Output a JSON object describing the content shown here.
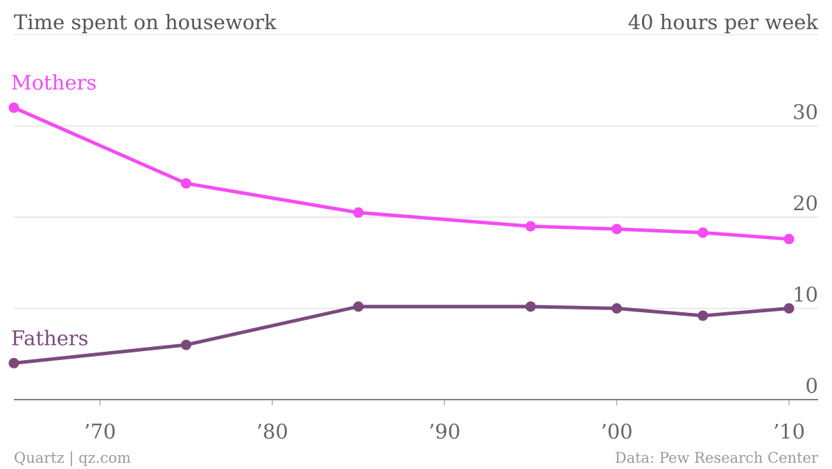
{
  "header": {
    "title": "Time spent on housework",
    "unit_label": "40 hours per week"
  },
  "footer": {
    "credit": "Quartz | qz.com",
    "source": "Data: Pew Research Center"
  },
  "chart_data": {
    "type": "line",
    "title": "Time spent on housework",
    "ylabel": "40 hours per week",
    "xlim": [
      1965,
      2011
    ],
    "ylim": [
      0,
      40
    ],
    "x_ticks": [
      {
        "value": 1970,
        "label": "’70"
      },
      {
        "value": 1980,
        "label": "’80"
      },
      {
        "value": 1990,
        "label": "’90"
      },
      {
        "value": 2000,
        "label": "’00"
      },
      {
        "value": 2010,
        "label": "’10"
      }
    ],
    "y_ticks": [
      {
        "value": 0,
        "label": "0"
      },
      {
        "value": 10,
        "label": "10"
      },
      {
        "value": 20,
        "label": "20"
      },
      {
        "value": 30,
        "label": "30"
      }
    ],
    "grid": true,
    "series": [
      {
        "name": "Mothers",
        "color": "#f34cf3",
        "x": [
          1965,
          1975,
          1985,
          1995,
          2000,
          2005,
          2010
        ],
        "values": [
          32.0,
          23.7,
          20.5,
          19.0,
          18.7,
          18.3,
          17.6
        ]
      },
      {
        "name": "Fathers",
        "color": "#7b4a7b",
        "x": [
          1965,
          1975,
          1985,
          1995,
          2000,
          2005,
          2010
        ],
        "values": [
          4.0,
          6.0,
          10.2,
          10.2,
          10.0,
          9.2,
          10.0
        ]
      }
    ]
  }
}
